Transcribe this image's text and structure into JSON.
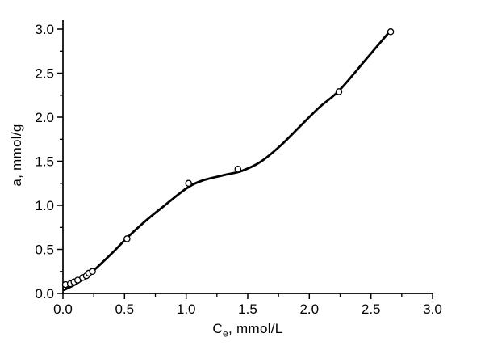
{
  "figure": {
    "background": "#ffffff",
    "axis_color": "#000000",
    "curve_color": "#000000",
    "marker_fill": "#ffffff",
    "marker_stroke": "#000000"
  },
  "chart_data": {
    "type": "scatter",
    "title": "",
    "xlabel": "Ce, mmol/L",
    "xlabel_parts": {
      "main": "C",
      "sub": "e",
      "rest": ", mmol/L"
    },
    "ylabel": "a, mmol/g",
    "xlim": [
      0.0,
      3.0
    ],
    "ylim": [
      0.0,
      3.1
    ],
    "grid": false,
    "legend": null,
    "x_major_ticks": [
      0.0,
      0.5,
      1.0,
      1.5,
      2.0,
      2.5,
      3.0
    ],
    "x_tick_labels": [
      "0.0",
      "0.5",
      "1.0",
      "1.5",
      "2.0",
      "2.5",
      "3.0"
    ],
    "y_major_ticks": [
      0.0,
      0.5,
      1.0,
      1.5,
      2.0,
      2.5,
      3.0
    ],
    "y_tick_labels": [
      "0.0",
      "0.5",
      "1.0",
      "1.5",
      "2.0",
      "2.5",
      "3.0"
    ],
    "minor_tick_step": 0.25,
    "series": [
      {
        "name": "experimental-points",
        "marker": "open-circle",
        "points": [
          [
            0.02,
            0.1
          ],
          [
            0.06,
            0.11
          ],
          [
            0.09,
            0.13
          ],
          [
            0.12,
            0.15
          ],
          [
            0.16,
            0.18
          ],
          [
            0.19,
            0.2
          ],
          [
            0.21,
            0.23
          ],
          [
            0.24,
            0.25
          ],
          [
            0.52,
            0.62
          ],
          [
            1.02,
            1.25
          ],
          [
            1.42,
            1.41
          ],
          [
            2.24,
            2.29
          ],
          [
            2.66,
            2.97
          ]
        ]
      },
      {
        "name": "fitted-curve",
        "marker": "none",
        "points": [
          [
            0.01,
            0.04
          ],
          [
            0.12,
            0.12
          ],
          [
            0.24,
            0.25
          ],
          [
            0.4,
            0.46
          ],
          [
            0.52,
            0.63
          ],
          [
            0.66,
            0.81
          ],
          [
            0.8,
            0.97
          ],
          [
            1.0,
            1.19
          ],
          [
            1.13,
            1.28
          ],
          [
            1.3,
            1.34
          ],
          [
            1.45,
            1.39
          ],
          [
            1.6,
            1.49
          ],
          [
            1.76,
            1.67
          ],
          [
            1.92,
            1.89
          ],
          [
            2.08,
            2.11
          ],
          [
            2.24,
            2.3
          ],
          [
            2.45,
            2.64
          ],
          [
            2.65,
            2.97
          ]
        ]
      }
    ]
  }
}
